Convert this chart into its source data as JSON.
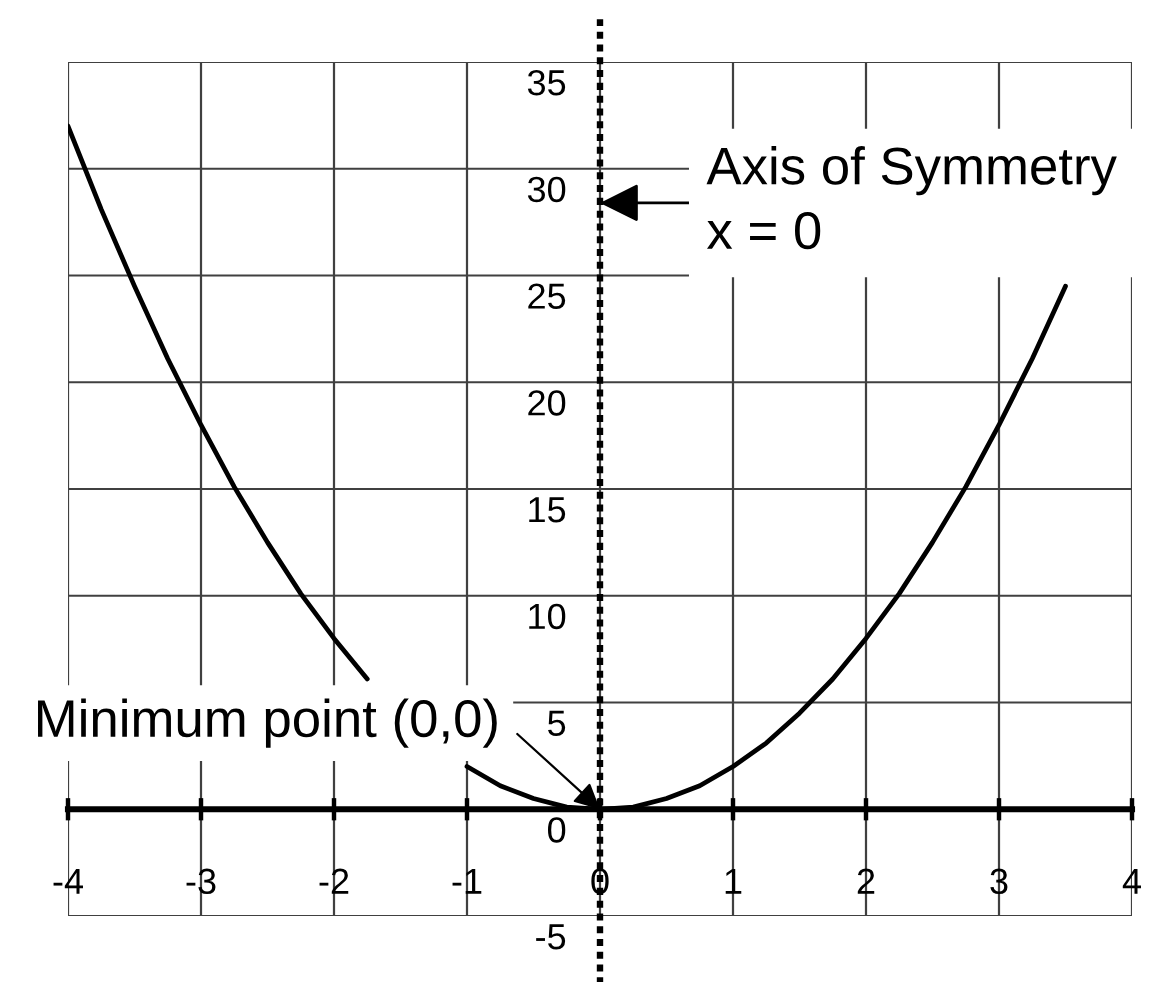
{
  "chart_data": {
    "type": "line",
    "x": [
      -4,
      -3.75,
      -3.5,
      -3.25,
      -3,
      -2.75,
      -2.5,
      -2.25,
      -2,
      -1.75,
      -1.4,
      -1,
      -0.75,
      -0.5,
      -0.25,
      0,
      0.25,
      0.5,
      0.75,
      1,
      1.25,
      1.5,
      1.75,
      2,
      2.25,
      2.5,
      2.75,
      3,
      3.25,
      3.5
    ],
    "series": [
      {
        "color": "#000000",
        "values": [
          32,
          28.1,
          24.5,
          21.1,
          18,
          15.1,
          12.5,
          10.1,
          8,
          6.1,
          null,
          2,
          1.1,
          0.5,
          0.1,
          0,
          0.1,
          0.5,
          1.1,
          2,
          3.1,
          4.5,
          6.1,
          8,
          10.1,
          12.5,
          15.1,
          18,
          21.1,
          24.5
        ]
      }
    ],
    "xlim": [
      -4,
      4
    ],
    "ylim": [
      -5,
      35
    ],
    "xticks": [
      -4,
      -3,
      -2,
      -1,
      0,
      1,
      2,
      3,
      4
    ],
    "yticks": [
      -5,
      0,
      5,
      10,
      15,
      20,
      25,
      30,
      35
    ],
    "grid": true,
    "ref_lines": [
      {
        "axis": "x",
        "value": 0,
        "label": "Axis of Symmetry\nx = 0",
        "line_style": "dotted",
        "color": "#000000"
      }
    ],
    "annotations": [
      {
        "text": "Minimum point (0,0)",
        "x": 0,
        "y": 0
      }
    ]
  }
}
